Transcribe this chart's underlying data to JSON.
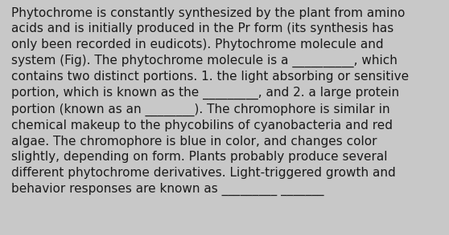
{
  "background_color": "#c8c8c8",
  "text_color": "#1a1a1a",
  "lines": [
    "Phytochrome is constantly synthesized by the plant from amino",
    "acids and is initially produced in the Pr form (its synthesis has",
    "only been recorded in eudicots). Phytochrome molecule and",
    "system (Fig). The phytochrome molecule is a __________, which",
    "contains two distinct portions. 1. the light absorbing or sensitive",
    "portion, which is known as the _________, and 2. a large protein",
    "portion (known as an ________). The chromophore is similar in",
    "chemical makeup to the phycobilins of cyanobacteria and red",
    "algae. The chromophore is blue in color, and changes color",
    "slightly, depending on form. Plants probably produce several",
    "different phytochrome derivatives. Light-triggered growth and",
    "behavior responses are known as _________ _______"
  ],
  "font_size": 11.0,
  "font_family": "DejaVu Sans",
  "figwidth": 5.58,
  "figheight": 2.93,
  "dpi": 100
}
